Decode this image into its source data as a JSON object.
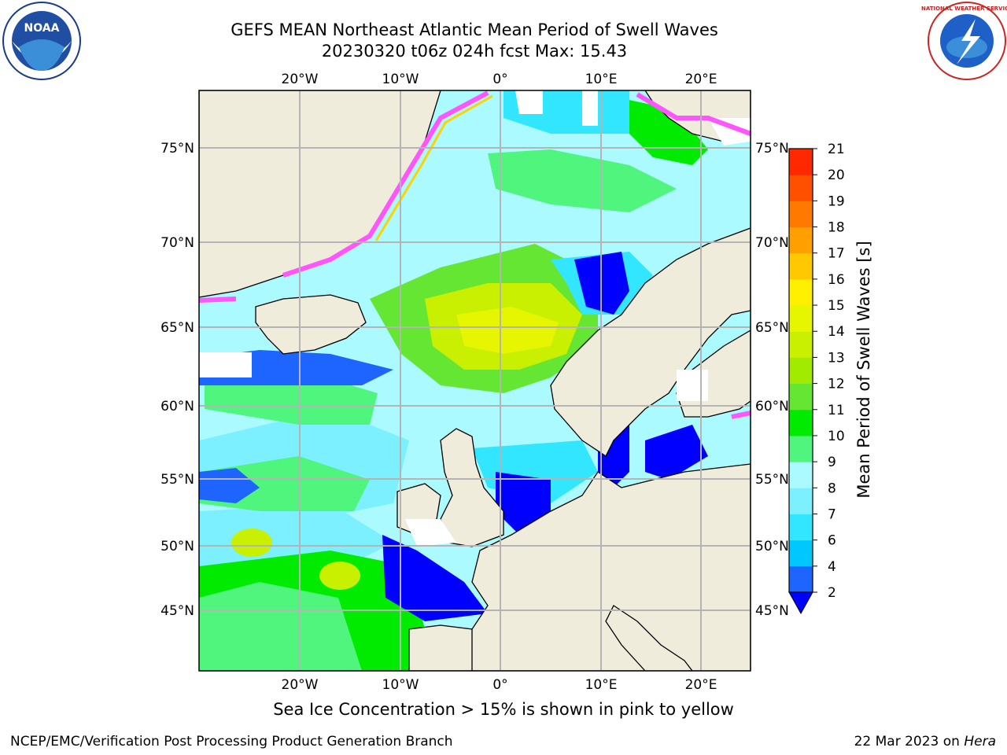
{
  "title": {
    "line1": "GEFS MEAN Northeast Atlantic Mean Period of Swell Waves",
    "line2": "20230320 t06z 024h fcst   Max: 15.43"
  },
  "logos": {
    "left": {
      "name": "noaa-logo",
      "text": "NOAA"
    },
    "right": {
      "name": "nws-logo",
      "text": "NATIONAL WEATHER SERVICE"
    }
  },
  "map": {
    "projection": "lat-lon",
    "lon_range": [
      -30,
      25
    ],
    "lat_range": [
      41,
      78
    ],
    "lon_ticks": [
      {
        "lon": -20,
        "label": "20°W"
      },
      {
        "lon": -10,
        "label": "10°W"
      },
      {
        "lon": 0,
        "label": "0°"
      },
      {
        "lon": 10,
        "label": "10°E"
      },
      {
        "lon": 20,
        "label": "20°E"
      }
    ],
    "lat_ticks": [
      {
        "lat": 75,
        "label": "75°N"
      },
      {
        "lat": 70,
        "label": "70°N"
      },
      {
        "lat": 65,
        "label": "65°N"
      },
      {
        "lat": 60,
        "label": "60°N"
      },
      {
        "lat": 55,
        "label": "55°N"
      },
      {
        "lat": 50,
        "label": "50°N"
      },
      {
        "lat": 45,
        "label": "45°N"
      }
    ],
    "grid": true,
    "colors": {
      "land": "#efecdc",
      "no_data": "#ffffff",
      "grid": "#b4b4b4",
      "coast": "#000000"
    }
  },
  "colorbar": {
    "label": "Mean Period of Swell Waves [s]",
    "ticks": [
      "2",
      "4",
      "6",
      "7",
      "8",
      "9",
      "10",
      "11",
      "12",
      "13",
      "14",
      "15",
      "16",
      "17",
      "18",
      "19",
      "20",
      "21"
    ],
    "colors": [
      "#1e64ff",
      "#00c8ff",
      "#32e6ff",
      "#7df0ff",
      "#aafaff",
      "#50f57d",
      "#00eb00",
      "#64e632",
      "#a0eb00",
      "#c8f000",
      "#e6f500",
      "#fff000",
      "#ffc800",
      "#ffa000",
      "#ff7800",
      "#ff5000",
      "#ff2800"
    ],
    "under_color": "#0000ff",
    "extend": "min"
  },
  "caption": "Sea Ice Concentration > 15% is shown in pink to yellow",
  "footer": {
    "left": "NCEP/EMC/Verification Post Processing Product Generation Branch",
    "right_date": "22 Mar 2023 on ",
    "right_host": "Hera"
  }
}
